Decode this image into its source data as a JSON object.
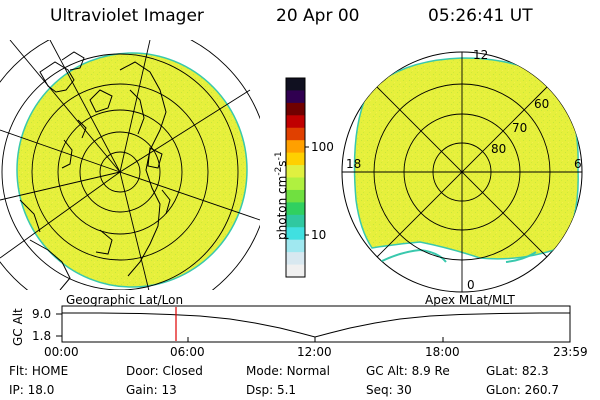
{
  "header": {
    "instrument": "Ultraviolet Imager",
    "date": "20 Apr 00",
    "time": "05:26:41 UT"
  },
  "colors": {
    "image_fill": "#e6f03c",
    "image_edge": "#39c8ad",
    "cursor_line": "#e00000",
    "grid_line": "#000000"
  },
  "colorbar": {
    "units": "photon cm",
    "units_exp1": "-2",
    "units_mid": "s",
    "units_exp2": "-1",
    "tick_labels": [
      "100",
      "10"
    ],
    "colors_top_to_bottom": [
      "#101020",
      "#300050",
      "#700000",
      "#c00000",
      "#e04000",
      "#ffa000",
      "#ffd000",
      "#e0f040",
      "#b0f040",
      "#70e040",
      "#30d060",
      "#30c8a0",
      "#40e0e0",
      "#a0e8f0",
      "#d8e8f0",
      "#f0f0f0"
    ]
  },
  "left_panel": {
    "label": "Geographic Lat/Lon"
  },
  "right_panel": {
    "label": "Apex MLat/MLT",
    "mlt_labels": [
      "12",
      "18",
      "6",
      "0"
    ],
    "lat_labels": [
      "60",
      "70",
      "80"
    ]
  },
  "altitude_plot": {
    "y_label": "GC Alt",
    "y_ticks": [
      "9.0",
      "1.8"
    ],
    "x_ticks": [
      "00:00",
      "06:00",
      "12:00",
      "18:00",
      "23:59"
    ],
    "cursor_time": "05:26:41"
  },
  "status": {
    "row1": [
      {
        "key": "Flt:",
        "value": "HOME"
      },
      {
        "key": "Door:",
        "value": "Closed"
      },
      {
        "key": "Mode:",
        "value": "Normal"
      },
      {
        "key": "GC Alt:",
        "value": "8.9 Re"
      },
      {
        "key": "GLat:",
        "value": "82.3"
      }
    ],
    "row2": [
      {
        "key": "IP:",
        "value": "18.0"
      },
      {
        "key": "Gain:",
        "value": "13"
      },
      {
        "key": "Dsp:",
        "value": "5.1"
      },
      {
        "key": "Seq:",
        "value": "30"
      },
      {
        "key": "GLon:",
        "value": "260.7"
      }
    ]
  }
}
